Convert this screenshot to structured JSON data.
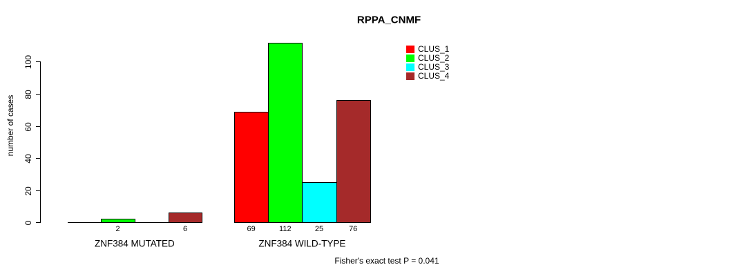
{
  "title": "RPPA_CNMF",
  "footer": "Fisher's exact test P = 0.041",
  "colors": {
    "clus_1": "#ff0000",
    "clus_2": "#00ff00",
    "clus_3": "#00ffff",
    "clus_4": "#a52a2a",
    "axis": "#000000",
    "background": "#ffffff"
  },
  "chart_data": {
    "type": "bar",
    "title": "RPPA_CNMF",
    "xlabel": "",
    "ylabel": "number of cases",
    "ylim": [
      0,
      100
    ],
    "yticks": [
      0,
      20,
      40,
      60,
      80,
      100
    ],
    "ytick_labels_rotated": true,
    "grid": false,
    "legend_position": "top-right-inside",
    "legend": [
      {
        "name": "CLUS_1",
        "color": "#ff0000"
      },
      {
        "name": "CLUS_2",
        "color": "#00ff00"
      },
      {
        "name": "CLUS_3",
        "color": "#00ffff"
      },
      {
        "name": "CLUS_4",
        "color": "#a52a2a"
      }
    ],
    "categories": [
      "ZNF384 MUTATED",
      "ZNF384 WILD-TYPE"
    ],
    "groups": [
      {
        "label": "ZNF384 MUTATED",
        "bars": [
          {
            "cluster": "CLUS_1",
            "value": 0,
            "label": ""
          },
          {
            "cluster": "CLUS_2",
            "value": 2,
            "label": "2"
          },
          {
            "cluster": "CLUS_3",
            "value": 0,
            "label": ""
          },
          {
            "cluster": "CLUS_4",
            "value": 6,
            "label": "6"
          }
        ]
      },
      {
        "label": "ZNF384 WILD-TYPE",
        "bars": [
          {
            "cluster": "CLUS_1",
            "value": 69,
            "label": "69"
          },
          {
            "cluster": "CLUS_2",
            "value": 112,
            "label": "112"
          },
          {
            "cluster": "CLUS_3",
            "value": 25,
            "label": "25"
          },
          {
            "cluster": "CLUS_4",
            "value": 76,
            "label": "76"
          }
        ]
      }
    ],
    "caption": "Fisher's exact test P = 0.041"
  }
}
